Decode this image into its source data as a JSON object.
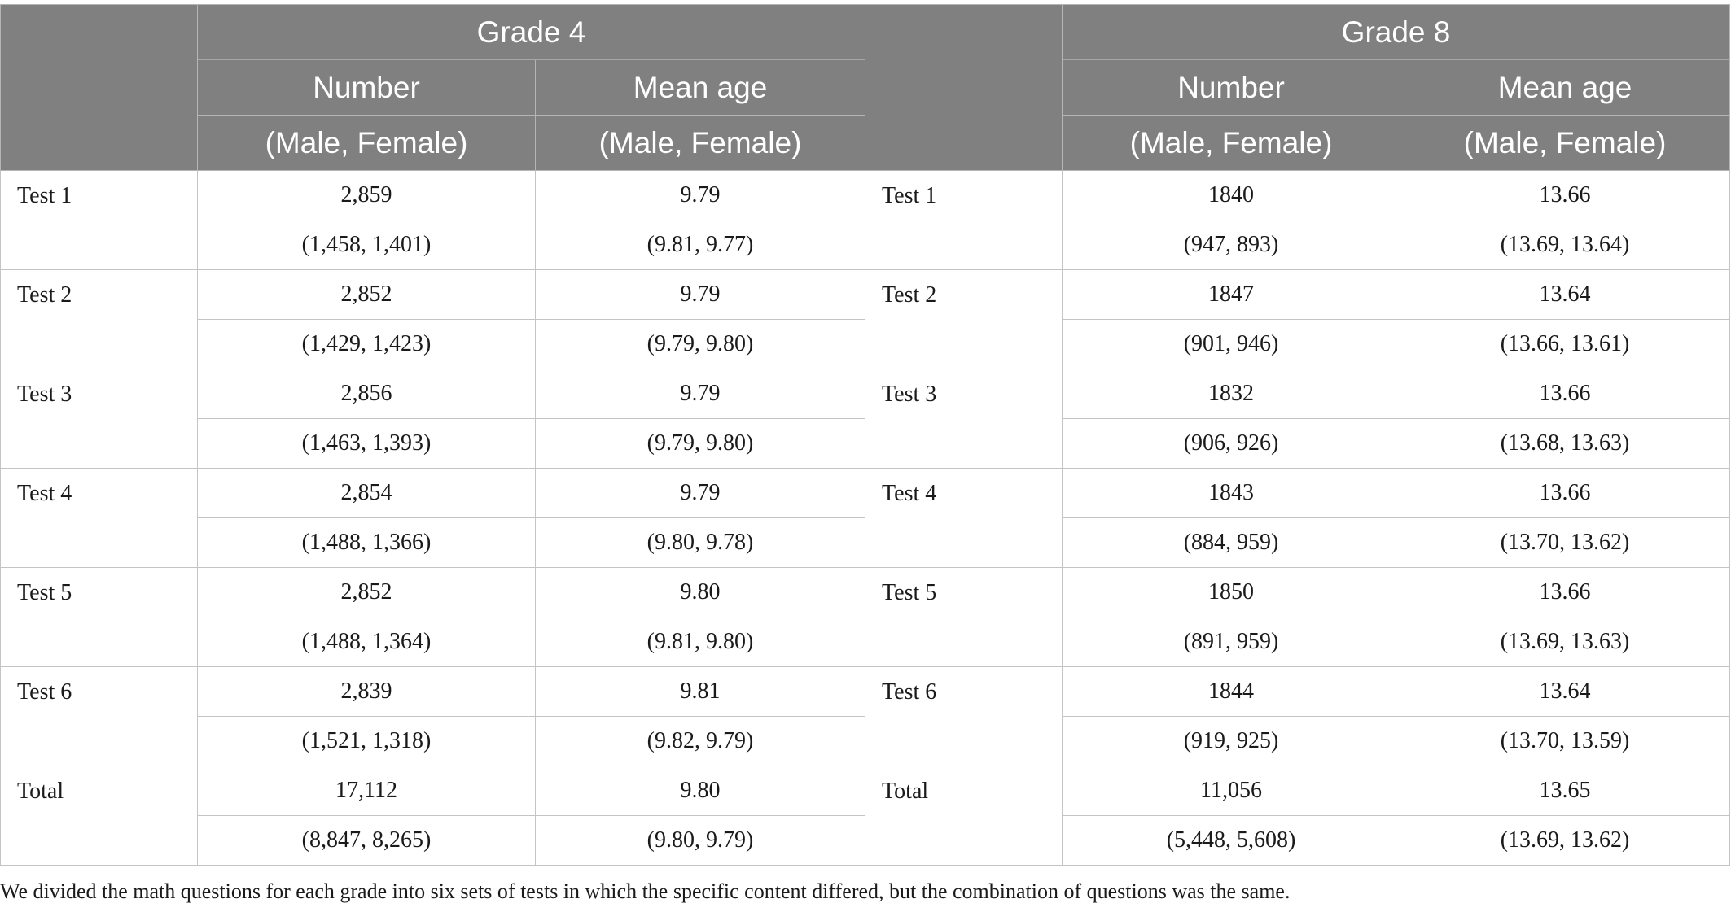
{
  "header": {
    "grade4_title": "Grade 4",
    "grade8_title": "Grade 8",
    "number_label": "Number",
    "mean_age_label": "Mean age",
    "sub_label": "(Male, Female)"
  },
  "rows": [
    {
      "label": "Test 1",
      "g4_number": "2,859",
      "g4_number_mf": "(1,458, 1,401)",
      "g4_age": "9.79",
      "g4_age_mf": "(9.81, 9.77)",
      "g8_label": "Test 1",
      "g8_number": "1840",
      "g8_number_mf": "(947, 893)",
      "g8_age": "13.66",
      "g8_age_mf": "(13.69, 13.64)"
    },
    {
      "label": "Test 2",
      "g4_number": "2,852",
      "g4_number_mf": "(1,429, 1,423)",
      "g4_age": "9.79",
      "g4_age_mf": "(9.79, 9.80)",
      "g8_label": "Test 2",
      "g8_number": "1847",
      "g8_number_mf": "(901, 946)",
      "g8_age": "13.64",
      "g8_age_mf": "(13.66, 13.61)"
    },
    {
      "label": "Test 3",
      "g4_number": "2,856",
      "g4_number_mf": "(1,463, 1,393)",
      "g4_age": "9.79",
      "g4_age_mf": "(9.79, 9.80)",
      "g8_label": "Test 3",
      "g8_number": "1832",
      "g8_number_mf": "(906, 926)",
      "g8_age": "13.66",
      "g8_age_mf": "(13.68, 13.63)"
    },
    {
      "label": "Test 4",
      "g4_number": "2,854",
      "g4_number_mf": "(1,488, 1,366)",
      "g4_age": "9.79",
      "g4_age_mf": "(9.80, 9.78)",
      "g8_label": "Test 4",
      "g8_number": "1843",
      "g8_number_mf": "(884, 959)",
      "g8_age": "13.66",
      "g8_age_mf": "(13.70, 13.62)"
    },
    {
      "label": "Test 5",
      "g4_number": "2,852",
      "g4_number_mf": "(1,488, 1,364)",
      "g4_age": "9.80",
      "g4_age_mf": "(9.81, 9.80)",
      "g8_label": "Test 5",
      "g8_number": "1850",
      "g8_number_mf": "(891, 959)",
      "g8_age": "13.66",
      "g8_age_mf": "(13.69, 13.63)"
    },
    {
      "label": "Test 6",
      "g4_number": "2,839",
      "g4_number_mf": "(1,521, 1,318)",
      "g4_age": "9.81",
      "g4_age_mf": "(9.82, 9.79)",
      "g8_label": "Test 6",
      "g8_number": "1844",
      "g8_number_mf": "(919, 925)",
      "g8_age": "13.64",
      "g8_age_mf": "(13.70, 13.59)"
    },
    {
      "label": "Total",
      "g4_number": "17,112",
      "g4_number_mf": "(8,847, 8,265)",
      "g4_age": "9.80",
      "g4_age_mf": "(9.80, 9.79)",
      "g8_label": "Total",
      "g8_number": "11,056",
      "g8_number_mf": "(5,448, 5,608)",
      "g8_age": "13.65",
      "g8_age_mf": "(13.69, 13.62)"
    }
  ],
  "footnote": "We divided the math questions for each grade into six sets of tests in which the specific content differed, but the combination of questions was the same."
}
